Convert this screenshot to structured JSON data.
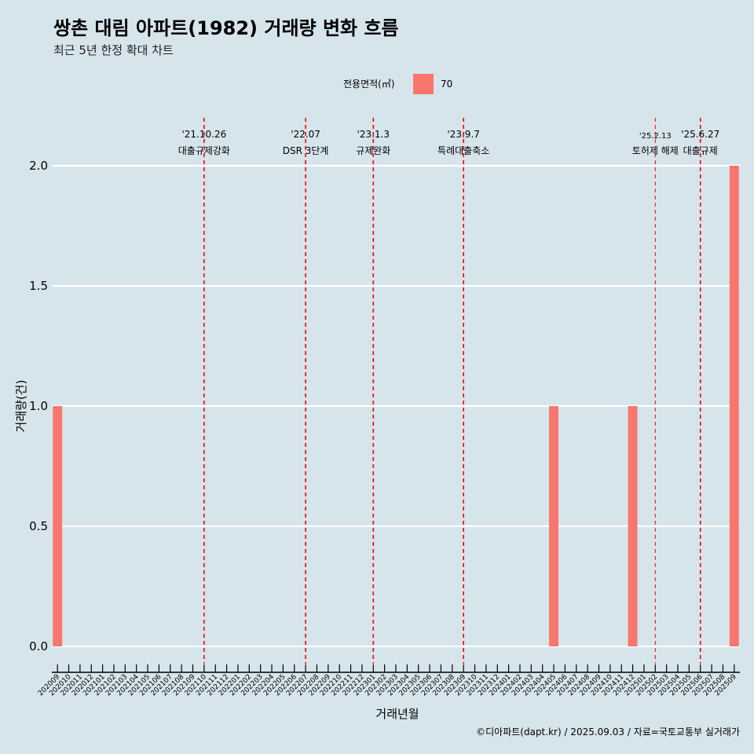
{
  "title": "쌍촌 대림 아파트(1982) 거래량 변화 흐름",
  "subtitle": "최근 5년 한정 확대 차트",
  "caption": "©디아파트(dapt.kr) / 2025.09.03 / 자료=국토교통부 실거래가",
  "colors": {
    "background": "#d6e4eb",
    "bar": "#f8766d",
    "grid": "#ffffff",
    "event_line": "#ff0000"
  },
  "chart_data": {
    "type": "bar",
    "xlabel": "거래년월",
    "ylabel": "거래량(건)",
    "ylim": [
      0,
      2
    ],
    "yticks": [
      "0.0",
      "0.5",
      "1.0",
      "1.5",
      "2.0"
    ],
    "legend": {
      "title": "전용면적(㎡)",
      "placement": "top"
    },
    "categories": [
      "202009",
      "202010",
      "202011",
      "202012",
      "202101",
      "202102",
      "202103",
      "202104",
      "202105",
      "202106",
      "202107",
      "202108",
      "202109",
      "202110",
      "202111",
      "202112",
      "202201",
      "202202",
      "202203",
      "202204",
      "202205",
      "202206",
      "202207",
      "202208",
      "202209",
      "202210",
      "202211",
      "202212",
      "202301",
      "202302",
      "202303",
      "202304",
      "202305",
      "202306",
      "202307",
      "202308",
      "202309",
      "202310",
      "202311",
      "202312",
      "202401",
      "202402",
      "202403",
      "202404",
      "202405",
      "202406",
      "202407",
      "202408",
      "202409",
      "202410",
      "202411",
      "202412",
      "202501",
      "202502",
      "202503",
      "202504",
      "202505",
      "202506",
      "202507",
      "202508",
      "202509"
    ],
    "series": [
      {
        "name": "70",
        "values": [
          1,
          0,
          0,
          0,
          0,
          0,
          0,
          0,
          0,
          0,
          0,
          0,
          0,
          0,
          0,
          0,
          0,
          0,
          0,
          0,
          0,
          0,
          0,
          0,
          0,
          0,
          0,
          0,
          0,
          0,
          0,
          0,
          0,
          0,
          0,
          0,
          0,
          0,
          0,
          0,
          0,
          0,
          0,
          0,
          1,
          0,
          0,
          0,
          0,
          0,
          0,
          1,
          0,
          0,
          0,
          0,
          0,
          0,
          0,
          0,
          2
        ]
      }
    ],
    "events": [
      {
        "date": "'21.10.26",
        "label": "대출규제강화",
        "x": "202110"
      },
      {
        "date": "'22.07",
        "label": "DSR 3단계",
        "x": "202207"
      },
      {
        "date": "'23.1.3",
        "label": "규제완화",
        "x": "202301"
      },
      {
        "date": "'23.9.7",
        "label": "특례대출축소",
        "x": "202309"
      },
      {
        "date": "'25.2.13",
        "label": "토허제 해제",
        "x": "202502"
      },
      {
        "date": "'25.6.27",
        "label": "대출규제",
        "x": "202506"
      }
    ]
  }
}
